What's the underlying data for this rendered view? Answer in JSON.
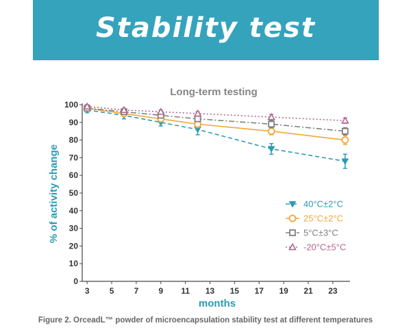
{
  "banner": {
    "title": "Stability test"
  },
  "caption": "Figure 2. OrceadL™ powder of microencapsulation stability test at different temperatures",
  "chart_data": {
    "type": "line",
    "title": "Long-term testing",
    "xlabel": "months",
    "ylabel": "% of activity change",
    "x_ticks": [
      3,
      5,
      7,
      9,
      11,
      13,
      15,
      17,
      19,
      21,
      23
    ],
    "y_ticks": [
      0,
      10,
      20,
      30,
      40,
      50,
      60,
      70,
      80,
      90,
      100
    ],
    "xlim": [
      2.6,
      24.4
    ],
    "ylim": [
      0,
      100
    ],
    "grid": false,
    "legend_position": "bottom-right",
    "x": [
      3,
      6,
      9,
      12,
      18,
      24
    ],
    "series": [
      {
        "name": "40°C±2°C",
        "values": [
          97,
          94,
          90,
          86,
          75,
          68
        ],
        "errors": [
          1.5,
          2,
          2,
          3,
          3,
          4
        ],
        "color": "#2b9ab5",
        "marker": "triangle-down",
        "dash": "dashed"
      },
      {
        "name": "25°C±2°C",
        "values": [
          98,
          95,
          92,
          89,
          85,
          80
        ],
        "errors": [
          1,
          1.5,
          1.5,
          2,
          2,
          2.5
        ],
        "color": "#f0a63a",
        "marker": "circle",
        "dash": "solid"
      },
      {
        "name": "5°C±3°C",
        "values": [
          98,
          96,
          94,
          92,
          89,
          85
        ],
        "errors": [
          1,
          1,
          1.5,
          1.5,
          2,
          2
        ],
        "color": "#7f7f7f",
        "marker": "square",
        "dash": "dashdot"
      },
      {
        "name": "-20°C±5°C",
        "values": [
          99,
          97,
          96,
          95,
          93,
          91
        ],
        "errors": [
          1,
          1,
          1,
          1,
          1.5,
          1.5
        ],
        "color": "#b0658f",
        "marker": "triangle-up",
        "dash": "dotted"
      }
    ]
  }
}
